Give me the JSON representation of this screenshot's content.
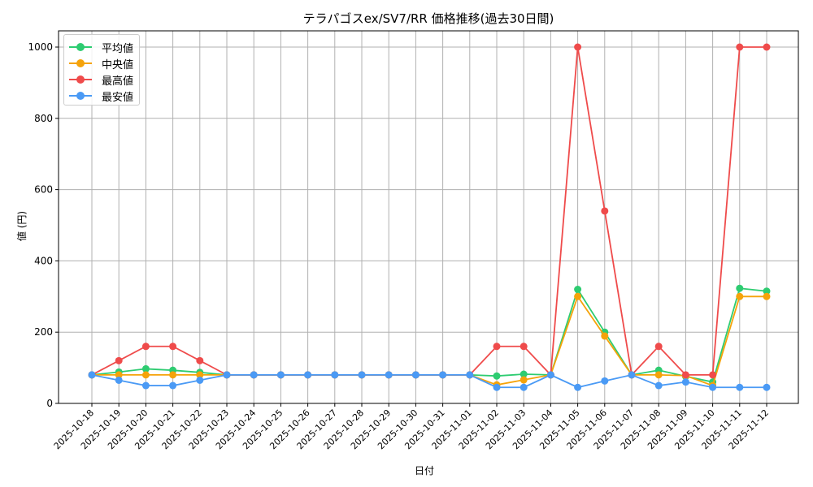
{
  "chart_data": {
    "type": "line",
    "title": "テラパゴスex/SV7/RR 価格推移(過去30日間)",
    "xlabel": "日付",
    "ylabel": "値 (円)",
    "ylim": [
      0,
      1050
    ],
    "yticks": [
      0,
      200,
      400,
      600,
      800,
      1000
    ],
    "grid": true,
    "legend_position": "upper left",
    "categories": [
      "2025-10-18",
      "2025-10-19",
      "2025-10-20",
      "2025-10-21",
      "2025-10-22",
      "2025-10-23",
      "2025-10-24",
      "2025-10-25",
      "2025-10-26",
      "2025-10-27",
      "2025-10-28",
      "2025-10-29",
      "2025-10-30",
      "2025-10-31",
      "2025-11-01",
      "2025-11-02",
      "2025-11-03",
      "2025-11-04",
      "2025-11-05",
      "2025-11-06",
      "2025-11-07",
      "2025-11-08",
      "2025-11-09",
      "2025-11-10",
      "2025-11-11",
      "2025-11-12"
    ],
    "series": [
      {
        "name": "平均値",
        "color": "#2ecc71",
        "values": [
          80,
          88,
          97,
          93,
          87,
          80,
          80,
          80,
          80,
          80,
          80,
          80,
          80,
          80,
          80,
          77,
          82,
          80,
          320,
          200,
          80,
          93,
          76,
          60,
          323,
          315
        ]
      },
      {
        "name": "中央値",
        "color": "#f5a30a",
        "values": [
          80,
          80,
          80,
          80,
          80,
          80,
          80,
          80,
          80,
          80,
          80,
          80,
          80,
          80,
          80,
          52,
          66,
          80,
          300,
          189,
          80,
          80,
          78,
          50,
          300,
          300
        ]
      },
      {
        "name": "最高値",
        "color": "#ef4b4b",
        "values": [
          80,
          120,
          160,
          160,
          120,
          80,
          80,
          80,
          80,
          80,
          80,
          80,
          80,
          80,
          80,
          160,
          160,
          80,
          1000,
          540,
          80,
          160,
          80,
          80,
          1000,
          1000
        ]
      },
      {
        "name": "最安値",
        "color": "#4a9af5",
        "values": [
          80,
          65,
          50,
          50,
          65,
          80,
          80,
          80,
          80,
          80,
          80,
          80,
          80,
          80,
          80,
          45,
          45,
          80,
          45,
          63,
          80,
          50,
          60,
          45,
          45,
          45
        ]
      }
    ]
  }
}
